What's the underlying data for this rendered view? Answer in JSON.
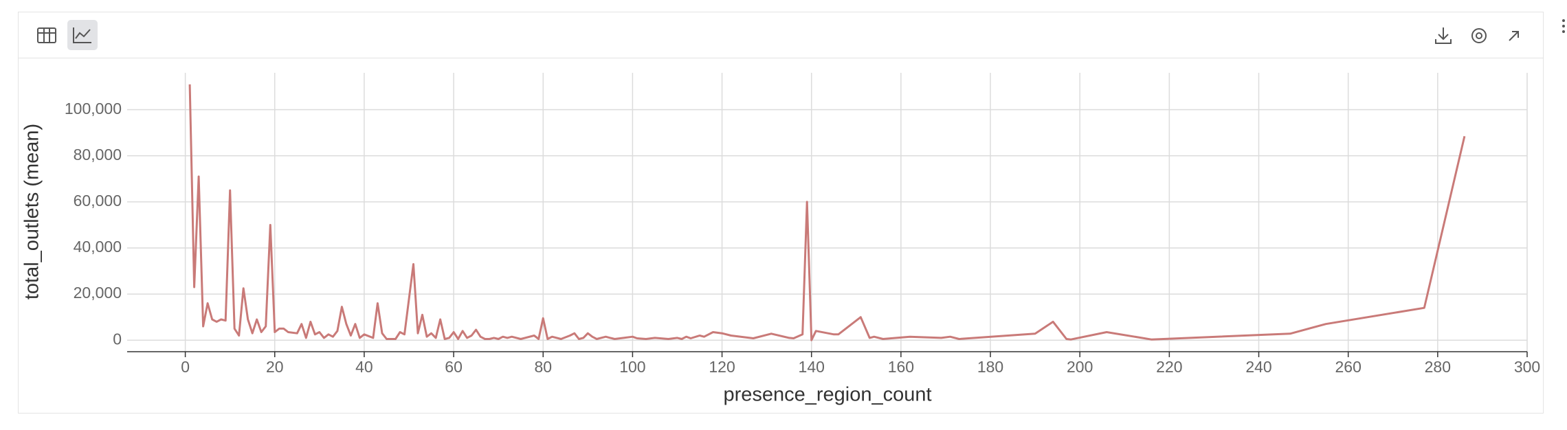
{
  "chart_data": {
    "type": "line",
    "x_label": "presence_region_count",
    "y_label": "total_outlets (mean)",
    "series": [
      {
        "color": "#c97a78",
        "x": [
          1,
          2,
          3,
          4,
          5,
          6,
          7,
          8,
          9,
          10,
          11,
          12,
          13,
          14,
          15,
          16,
          17,
          18,
          19,
          20,
          21,
          22,
          23,
          25,
          26,
          27,
          28,
          29,
          30,
          31,
          32,
          33,
          34,
          35,
          36,
          37,
          38,
          39,
          40,
          42,
          43,
          44,
          45,
          47,
          48,
          49,
          51,
          52,
          53,
          54,
          55,
          56,
          57,
          58,
          59,
          60,
          61,
          62,
          63,
          64,
          65,
          66,
          67,
          68,
          69,
          70,
          71,
          72,
          73,
          75,
          78,
          79,
          80,
          81,
          82,
          84,
          86,
          87,
          88,
          89,
          90,
          91,
          92,
          94,
          95,
          96,
          98,
          100,
          101,
          103,
          105,
          108,
          110,
          111,
          112,
          113,
          115,
          116,
          118,
          120,
          122,
          127,
          131,
          135,
          136,
          138,
          139,
          140,
          141,
          145,
          146,
          151,
          153,
          154,
          156,
          162,
          169,
          171,
          173,
          190,
          194,
          197,
          198,
          206,
          216,
          247,
          255,
          277,
          286
        ],
        "values": [
          111000,
          23000,
          71000,
          6000,
          16000,
          9000,
          8000,
          9000,
          8500,
          65000,
          5000,
          2000,
          22500,
          9000,
          3000,
          9000,
          3500,
          6000,
          50000,
          3500,
          5000,
          5000,
          3500,
          3000,
          7000,
          1000,
          8000,
          2500,
          3500,
          1000,
          2500,
          1500,
          4000,
          14500,
          7000,
          2000,
          7000,
          1000,
          2500,
          1000,
          16000,
          3000,
          500,
          500,
          3500,
          2500,
          33000,
          3000,
          11000,
          1500,
          3000,
          1000,
          9000,
          500,
          1000,
          3500,
          500,
          4000,
          1000,
          2000,
          4500,
          1500,
          500,
          500,
          1000,
          500,
          1500,
          1000,
          1500,
          500,
          2000,
          500,
          9500,
          500,
          1500,
          500,
          2000,
          3000,
          500,
          1000,
          3000,
          1500,
          500,
          1500,
          1000,
          500,
          1000,
          1500,
          800,
          500,
          1000,
          500,
          1000,
          500,
          1500,
          800,
          2000,
          1500,
          3500,
          3000,
          2000,
          800,
          2800,
          1000,
          800,
          2500,
          60000,
          0,
          4000,
          2500,
          2500,
          10000,
          1000,
          1500,
          500,
          1500,
          1000,
          1500,
          500,
          2800,
          8000,
          500,
          300,
          3500,
          300,
          2800,
          7000,
          14000,
          88500
        ]
      }
    ],
    "xlim": [
      -13,
      300
    ],
    "xticks": [
      0,
      20,
      40,
      60,
      80,
      100,
      120,
      140,
      160,
      180,
      200,
      220,
      240,
      260,
      280,
      300
    ],
    "ylim": [
      -5000,
      116000
    ],
    "yticks": [
      0,
      {
        "value": 20000,
        "label": "20,000"
      },
      {
        "value": 40000,
        "label": "40,000"
      },
      {
        "value": 60000,
        "label": "60,000"
      },
      {
        "value": 80000,
        "label": "80,000"
      },
      {
        "value": 100000,
        "label": "100,000"
      }
    ],
    "grid": true
  }
}
